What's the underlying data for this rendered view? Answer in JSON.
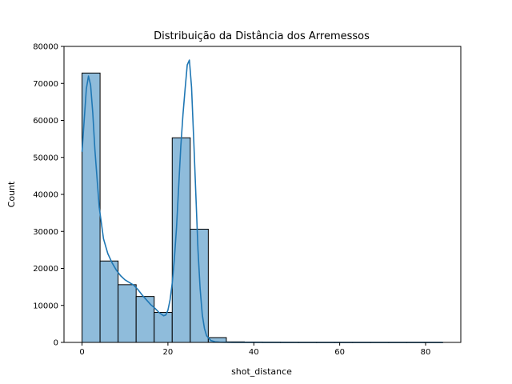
{
  "chart_data": {
    "type": "bar",
    "title": "Distribuição da Distância dos Arremessos",
    "xlabel": "shot_distance",
    "ylabel": "Count",
    "xlim": [
      -4.2,
      88.2
    ],
    "ylim": [
      0,
      80000
    ],
    "x_ticks": [
      0,
      20,
      40,
      60,
      80
    ],
    "y_ticks": [
      0,
      10000,
      20000,
      30000,
      40000,
      50000,
      60000,
      70000,
      80000
    ],
    "grid": false,
    "legend": "none",
    "bar_color": "#8fbcdb",
    "bar_edge_color": "#000000",
    "kde_color": "#1f77b4",
    "bins": [
      {
        "x0": 0.0,
        "x1": 4.2,
        "count": 72800
      },
      {
        "x0": 4.2,
        "x1": 8.4,
        "count": 22000
      },
      {
        "x0": 8.4,
        "x1": 12.6,
        "count": 15600
      },
      {
        "x0": 12.6,
        "x1": 16.8,
        "count": 12400
      },
      {
        "x0": 16.8,
        "x1": 21.0,
        "count": 8100
      },
      {
        "x0": 21.0,
        "x1": 25.2,
        "count": 55300
      },
      {
        "x0": 25.2,
        "x1": 29.4,
        "count": 30600
      },
      {
        "x0": 29.4,
        "x1": 33.6,
        "count": 1300
      },
      {
        "x0": 33.6,
        "x1": 37.8,
        "count": 150
      },
      {
        "x0": 37.8,
        "x1": 42.0,
        "count": 80
      },
      {
        "x0": 42.0,
        "x1": 46.2,
        "count": 40
      },
      {
        "x0": 46.2,
        "x1": 50.4,
        "count": 20
      },
      {
        "x0": 50.4,
        "x1": 54.6,
        "count": 10
      },
      {
        "x0": 54.6,
        "x1": 58.8,
        "count": 5
      },
      {
        "x0": 58.8,
        "x1": 63.0,
        "count": 3
      },
      {
        "x0": 63.0,
        "x1": 67.2,
        "count": 2
      },
      {
        "x0": 67.2,
        "x1": 71.4,
        "count": 1
      },
      {
        "x0": 71.4,
        "x1": 75.6,
        "count": 1
      },
      {
        "x0": 75.6,
        "x1": 79.8,
        "count": 1
      },
      {
        "x0": 79.8,
        "x1": 84.0,
        "count": 1
      }
    ],
    "kde": {
      "x": [
        0,
        0.5,
        1,
        1.5,
        2,
        2.5,
        3,
        4,
        5,
        6,
        7,
        8,
        9,
        10,
        11,
        12,
        13,
        14,
        15,
        16,
        17,
        18,
        19,
        19.5,
        20,
        20.5,
        21,
        21.5,
        22,
        22.5,
        23,
        23.5,
        24,
        24.5,
        25,
        25.5,
        26,
        26.5,
        27,
        27.5,
        28,
        28.5,
        29,
        30,
        31,
        32,
        35,
        40,
        50,
        60,
        70,
        80,
        84
      ],
      "y": [
        51500,
        60000,
        68500,
        72000,
        69500,
        62000,
        52000,
        36500,
        28000,
        24000,
        21500,
        19500,
        18000,
        16900,
        16200,
        15500,
        14300,
        12800,
        11500,
        10200,
        9200,
        8000,
        7200,
        7400,
        8700,
        11500,
        16000,
        22500,
        31000,
        42000,
        53000,
        61500,
        68500,
        75000,
        76300,
        69000,
        55000,
        40000,
        25000,
        14500,
        7500,
        3800,
        1800,
        500,
        150,
        60,
        20,
        8,
        3,
        2,
        1,
        1,
        0
      ]
    }
  }
}
